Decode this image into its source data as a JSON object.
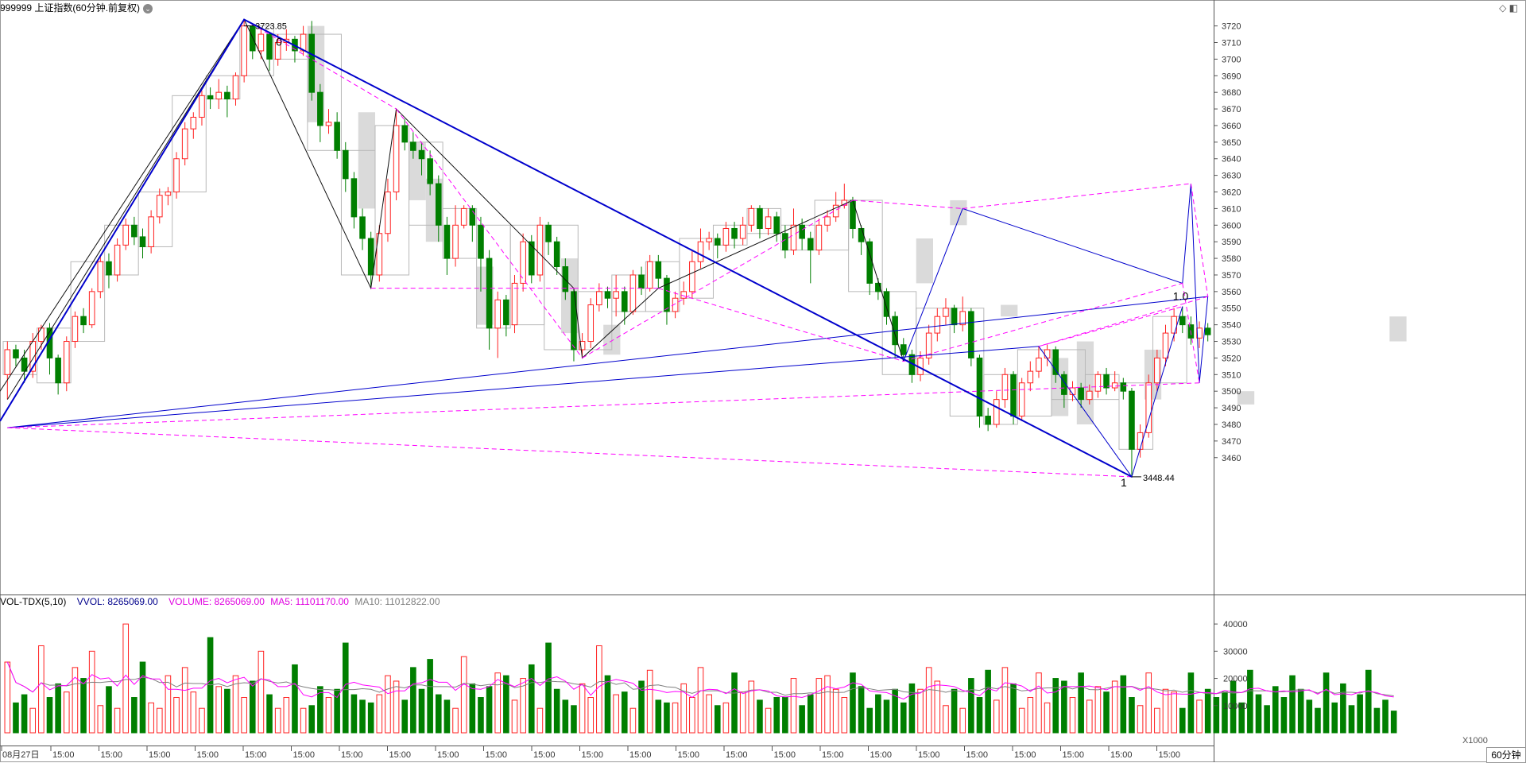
{
  "header": {
    "title": "999999 上证指数(60分钟.前复权)",
    "menu_icon": "chevron-down-icon",
    "right_icons": "◇ ◧"
  },
  "volume_header": {
    "indicator": "VOL-TDX(5,10)",
    "vvol": "VVOL: 8265069.00",
    "volume": "VOLUME: 8265069.00",
    "ma5": "MA5: 11101170.00",
    "ma10": "MA10: 11012822.00"
  },
  "colors": {
    "up": "#ff2020",
    "down": "#007f00",
    "trend": "#0000cc",
    "fan": "#ff00ff",
    "zigzag": "#111111",
    "ma5_vol": "#ff00ff",
    "ma10_vol": "#808080",
    "box": "#c8c8c8"
  },
  "chart_data": [
    {
      "type": "candlestick",
      "y_axis_ticks": [
        3460,
        3470,
        3480,
        3490,
        3500,
        3510,
        3520,
        3530,
        3540,
        3550,
        3560,
        3570,
        3580,
        3590,
        3600,
        3610,
        3620,
        3630,
        3640,
        3650,
        3660,
        3670,
        3680,
        3690,
        3700,
        3710,
        3720
      ],
      "ylim": [
        3446,
        3727
      ],
      "x_labels": [
        "08月27日",
        "15:00",
        "15:00",
        "15:00",
        "15:00",
        "15:00",
        "15:00",
        "15:00",
        "15:00",
        "15:00",
        "15:00",
        "15:00",
        "15:00",
        "15:00",
        "15:00",
        "15:00",
        "15:00",
        "15:00",
        "15:00",
        "15:00",
        "15:00",
        "15:00",
        "15:00",
        "15:00",
        "15:00"
      ],
      "annotations": {
        "high_label": "3723.85",
        "low_label": "3448.44",
        "fib_zero": "0",
        "fib_one": "1",
        "fib_one_point_zero": "1.0"
      },
      "pivots": [
        3495,
        3723.85,
        3562,
        3670,
        3562,
        3520,
        3562,
        3615,
        3518,
        3610,
        3565,
        3625,
        3505,
        3557,
        3478,
        3527,
        3448.44,
        3551
      ],
      "trend_line": [
        [
          0,
          3482
        ],
        [
          56,
          3723.85
        ],
        [
          230,
          3448.44
        ]
      ],
      "candles": [
        [
          3510,
          3525,
          3530,
          3495
        ],
        [
          3525,
          3520,
          3528,
          3515
        ],
        [
          3520,
          3512,
          3525,
          3505
        ],
        [
          3512,
          3530,
          3535,
          3508
        ],
        [
          3530,
          3538,
          3540,
          3525
        ],
        [
          3538,
          3520,
          3541,
          3510
        ],
        [
          3520,
          3505,
          3522,
          3498
        ],
        [
          3505,
          3530,
          3533,
          3500
        ],
        [
          3530,
          3545,
          3548,
          3526
        ],
        [
          3545,
          3540,
          3550,
          3535
        ],
        [
          3540,
          3560,
          3562,
          3538
        ],
        [
          3560,
          3578,
          3581,
          3556
        ],
        [
          3578,
          3570,
          3583,
          3562
        ],
        [
          3570,
          3588,
          3592,
          3566
        ],
        [
          3588,
          3600,
          3604,
          3585
        ],
        [
          3600,
          3593,
          3605,
          3588
        ],
        [
          3593,
          3587,
          3598,
          3580
        ],
        [
          3587,
          3605,
          3609,
          3583
        ],
        [
          3605,
          3618,
          3622,
          3601
        ],
        [
          3618,
          3620,
          3623,
          3612
        ],
        [
          3620,
          3640,
          3644,
          3616
        ],
        [
          3640,
          3658,
          3662,
          3636
        ],
        [
          3658,
          3665,
          3668,
          3652
        ],
        [
          3665,
          3678,
          3681,
          3660
        ],
        [
          3678,
          3676,
          3683,
          3670
        ],
        [
          3676,
          3680,
          3688,
          3670
        ],
        [
          3680,
          3676,
          3684,
          3665
        ],
        [
          3676,
          3690,
          3692,
          3672
        ],
        [
          3690,
          3720,
          3724,
          3686
        ],
        [
          3720,
          3705,
          3721,
          3700
        ],
        [
          3705,
          3715,
          3718,
          3700
        ],
        [
          3715,
          3700,
          3716,
          3693
        ],
        [
          3700,
          3710,
          3715,
          3696
        ],
        [
          3710,
          3712,
          3718,
          3705
        ],
        [
          3712,
          3705,
          3714,
          3698
        ],
        [
          3705,
          3715,
          3720,
          3702
        ],
        [
          3715,
          3680,
          3723,
          3675
        ],
        [
          3680,
          3660,
          3685,
          3650
        ],
        [
          3660,
          3662,
          3670,
          3655
        ],
        [
          3662,
          3645,
          3668,
          3640
        ],
        [
          3645,
          3628,
          3650,
          3620
        ],
        [
          3628,
          3605,
          3632,
          3598
        ],
        [
          3605,
          3592,
          3610,
          3585
        ],
        [
          3592,
          3570,
          3596,
          3562
        ],
        [
          3570,
          3595,
          3600,
          3566
        ],
        [
          3595,
          3620,
          3628,
          3590
        ],
        [
          3620,
          3660,
          3670,
          3615
        ],
        [
          3660,
          3650,
          3664,
          3645
        ],
        [
          3650,
          3645,
          3656,
          3640
        ],
        [
          3645,
          3640,
          3650,
          3630
        ],
        [
          3640,
          3625,
          3645,
          3618
        ],
        [
          3625,
          3600,
          3630,
          3590
        ],
        [
          3600,
          3580,
          3605,
          3570
        ],
        [
          3580,
          3600,
          3612,
          3575
        ],
        [
          3600,
          3610,
          3612,
          3598
        ],
        [
          3610,
          3600,
          3612,
          3590
        ],
        [
          3600,
          3580,
          3605,
          3560
        ],
        [
          3580,
          3538,
          3585,
          3525
        ],
        [
          3538,
          3555,
          3560,
          3520
        ],
        [
          3555,
          3540,
          3558,
          3533
        ],
        [
          3540,
          3565,
          3570,
          3535
        ],
        [
          3565,
          3590,
          3595,
          3560
        ],
        [
          3590,
          3570,
          3594,
          3565
        ],
        [
          3570,
          3600,
          3605,
          3566
        ],
        [
          3600,
          3590,
          3602,
          3582
        ],
        [
          3590,
          3575,
          3593,
          3570
        ],
        [
          3575,
          3560,
          3580,
          3555
        ],
        [
          3560,
          3525,
          3562,
          3518
        ],
        [
          3525,
          3530,
          3535,
          3520
        ],
        [
          3530,
          3552,
          3556,
          3526
        ],
        [
          3552,
          3560,
          3565,
          3548
        ],
        [
          3560,
          3556,
          3563,
          3550
        ],
        [
          3556,
          3560,
          3570,
          3545
        ],
        [
          3560,
          3548,
          3563,
          3540
        ],
        [
          3548,
          3570,
          3573,
          3546
        ],
        [
          3570,
          3562,
          3575,
          3558
        ],
        [
          3562,
          3578,
          3582,
          3560
        ],
        [
          3578,
          3568,
          3582,
          3562
        ],
        [
          3568,
          3548,
          3570,
          3540
        ],
        [
          3548,
          3556,
          3560,
          3544
        ],
        [
          3556,
          3560,
          3566,
          3552
        ],
        [
          3560,
          3578,
          3585,
          3556
        ],
        [
          3578,
          3590,
          3598,
          3574
        ],
        [
          3590,
          3592,
          3596,
          3585
        ],
        [
          3592,
          3588,
          3595,
          3580
        ],
        [
          3588,
          3598,
          3602,
          3584
        ],
        [
          3598,
          3592,
          3602,
          3586
        ],
        [
          3592,
          3600,
          3605,
          3588
        ],
        [
          3600,
          3610,
          3612,
          3596
        ],
        [
          3610,
          3598,
          3612,
          3592
        ],
        [
          3598,
          3605,
          3610,
          3594
        ],
        [
          3605,
          3595,
          3608,
          3590
        ],
        [
          3595,
          3585,
          3600,
          3580
        ],
        [
          3585,
          3600,
          3610,
          3582
        ],
        [
          3600,
          3592,
          3604,
          3585
        ],
        [
          3592,
          3585,
          3596,
          3565
        ],
        [
          3585,
          3600,
          3604,
          3582
        ],
        [
          3600,
          3605,
          3609,
          3596
        ],
        [
          3605,
          3612,
          3620,
          3602
        ],
        [
          3612,
          3615,
          3625,
          3610
        ],
        [
          3615,
          3598,
          3617,
          3592
        ],
        [
          3598,
          3590,
          3600,
          3582
        ],
        [
          3590,
          3565,
          3592,
          3558
        ],
        [
          3565,
          3560,
          3568,
          3555
        ],
        [
          3560,
          3545,
          3562,
          3540
        ],
        [
          3545,
          3528,
          3548,
          3520
        ],
        [
          3528,
          3522,
          3532,
          3518
        ],
        [
          3522,
          3510,
          3525,
          3505
        ],
        [
          3510,
          3520,
          3524,
          3506
        ],
        [
          3520,
          3535,
          3540,
          3516
        ],
        [
          3535,
          3545,
          3550,
          3530
        ],
        [
          3545,
          3550,
          3556,
          3540
        ],
        [
          3550,
          3540,
          3552,
          3535
        ],
        [
          3540,
          3548,
          3557,
          3536
        ],
        [
          3548,
          3520,
          3550,
          3515
        ],
        [
          3520,
          3485,
          3522,
          3478
        ],
        [
          3485,
          3480,
          3490,
          3476
        ],
        [
          3480,
          3495,
          3500,
          3478
        ],
        [
          3495,
          3510,
          3514,
          3490
        ],
        [
          3510,
          3485,
          3512,
          3480
        ],
        [
          3485,
          3505,
          3508,
          3482
        ],
        [
          3505,
          3512,
          3518,
          3500
        ],
        [
          3512,
          3520,
          3527,
          3508
        ],
        [
          3520,
          3525,
          3528,
          3515
        ],
        [
          3525,
          3510,
          3527,
          3505
        ],
        [
          3510,
          3498,
          3512,
          3490
        ],
        [
          3498,
          3502,
          3506,
          3494
        ],
        [
          3502,
          3495,
          3505,
          3490
        ],
        [
          3495,
          3500,
          3504,
          3492
        ],
        [
          3500,
          3510,
          3512,
          3496
        ],
        [
          3510,
          3502,
          3514,
          3498
        ],
        [
          3502,
          3505,
          3512,
          3500
        ],
        [
          3505,
          3500,
          3508,
          3495
        ],
        [
          3500,
          3465,
          3502,
          3448
        ],
        [
          3465,
          3475,
          3480,
          3460
        ],
        [
          3475,
          3505,
          3510,
          3472
        ],
        [
          3505,
          3520,
          3525,
          3500
        ],
        [
          3520,
          3535,
          3540,
          3515
        ],
        [
          3535,
          3545,
          3550,
          3530
        ],
        [
          3545,
          3540,
          3551,
          3535
        ],
        [
          3540,
          3532,
          3545,
          3528
        ],
        [
          3532,
          3538,
          3542,
          3526
        ],
        [
          3538,
          3534,
          3541,
          3530
        ]
      ],
      "grey_boxes": [
        [
          36,
          37,
          3662,
          3720
        ],
        [
          42,
          43,
          3610,
          3668
        ],
        [
          48,
          49,
          3615,
          3650
        ],
        [
          50,
          51,
          3590,
          3628
        ],
        [
          56,
          57,
          3540,
          3575
        ],
        [
          66,
          67,
          3535,
          3580
        ],
        [
          71,
          72,
          3522,
          3540
        ],
        [
          108,
          109,
          3565,
          3592
        ],
        [
          112,
          113,
          3600,
          3615
        ],
        [
          118,
          119,
          3545,
          3552
        ],
        [
          124,
          125,
          3485,
          3520
        ],
        [
          127,
          128,
          3480,
          3530
        ],
        [
          135,
          136,
          3495,
          3525
        ],
        [
          146,
          147,
          3492,
          3500
        ],
        [
          164,
          165,
          3530,
          3545
        ]
      ]
    },
    {
      "type": "bar",
      "y_axis_ticks": [
        10000,
        20000,
        30000,
        40000
      ],
      "ylim": [
        0,
        45000
      ],
      "unit_label": "X1000",
      "period_label": "60分钟",
      "volumes": [
        26000,
        11000,
        14000,
        9000,
        32000,
        13000,
        18000,
        15000,
        24000,
        20000,
        30000,
        10000,
        17000,
        9000,
        40000,
        13000,
        26000,
        11000,
        9000,
        21000,
        13000,
        24000,
        15000,
        9000,
        35000,
        17000,
        16000,
        21000,
        13000,
        19000,
        30000,
        14000,
        9000,
        13000,
        25000,
        9000,
        10000,
        17000,
        13000,
        16000,
        33000,
        14000,
        12000,
        11000,
        14000,
        21000,
        19000,
        12000,
        24000,
        16000,
        27000,
        14000,
        12000,
        9000,
        28000,
        18000,
        13000,
        17000,
        22000,
        21000,
        12000,
        20000,
        25000,
        9000,
        33000,
        16000,
        12000,
        10000,
        18000,
        13000,
        32000,
        21000,
        14000,
        15000,
        9000,
        19000,
        23000,
        12000,
        11000,
        11000,
        18000,
        13000,
        24000,
        14000,
        10000,
        11000,
        22000,
        15000,
        19000,
        12000,
        9000,
        13000,
        13000,
        20000,
        10000,
        14000,
        20000,
        21000,
        16000,
        13000,
        22000,
        17000,
        9000,
        14000,
        12000,
        16000,
        11000,
        18000,
        16000,
        24000,
        19000,
        10000,
        16000,
        9000,
        20000,
        13000,
        23000,
        12000,
        24000,
        18000,
        9000,
        13000,
        22000,
        11000,
        20000,
        19000,
        13000,
        22000,
        12000,
        17000,
        15000,
        19000,
        21000,
        13000,
        10000,
        22000,
        9000,
        16000,
        15000,
        9000,
        22000,
        12000,
        16000,
        13000,
        15000,
        19000,
        11000,
        23000,
        14000,
        10000,
        17000,
        13000,
        21000,
        16000,
        12000,
        9000,
        22000,
        11000,
        18000,
        10000,
        14000,
        23000,
        9000,
        12000,
        8000
      ]
    }
  ]
}
